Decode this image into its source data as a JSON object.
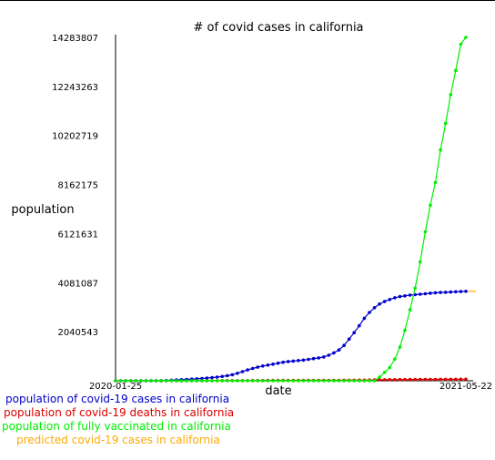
{
  "chart_data": {
    "type": "line",
    "title": "# of covid cases in california",
    "xlabel": "date",
    "ylabel": "population",
    "x_range": [
      "2020-01-25",
      "2021-05-22"
    ],
    "x_tick_labels": [
      "2020-01-25",
      "2021-05-22"
    ],
    "y_tick_labels": [
      "14283807",
      "12243263",
      "10202719",
      "8162175",
      "6121631",
      "4081087",
      "2040543"
    ],
    "ylim": [
      0,
      14283807
    ],
    "grid": false,
    "legend_position": "bottom-left",
    "dates": [
      "2020-01-25",
      "2020-02-01",
      "2020-02-08",
      "2020-02-15",
      "2020-02-22",
      "2020-02-29",
      "2020-03-07",
      "2020-03-14",
      "2020-03-21",
      "2020-03-28",
      "2020-04-04",
      "2020-04-11",
      "2020-04-18",
      "2020-04-25",
      "2020-05-02",
      "2020-05-09",
      "2020-05-16",
      "2020-05-23",
      "2020-05-30",
      "2020-06-06",
      "2020-06-13",
      "2020-06-20",
      "2020-06-27",
      "2020-07-04",
      "2020-07-11",
      "2020-07-18",
      "2020-07-25",
      "2020-08-01",
      "2020-08-08",
      "2020-08-15",
      "2020-08-22",
      "2020-08-29",
      "2020-09-05",
      "2020-09-12",
      "2020-09-19",
      "2020-09-26",
      "2020-10-03",
      "2020-10-10",
      "2020-10-17",
      "2020-10-24",
      "2020-10-31",
      "2020-11-07",
      "2020-11-14",
      "2020-11-21",
      "2020-11-28",
      "2020-12-05",
      "2020-12-12",
      "2020-12-19",
      "2020-12-26",
      "2021-01-02",
      "2021-01-09",
      "2021-01-16",
      "2021-01-23",
      "2021-01-30",
      "2021-02-06",
      "2021-02-13",
      "2021-02-20",
      "2021-02-27",
      "2021-03-06",
      "2021-03-13",
      "2021-03-20",
      "2021-03-27",
      "2021-04-03",
      "2021-04-10",
      "2021-04-17",
      "2021-04-24",
      "2021-05-01",
      "2021-05-08",
      "2021-05-15",
      "2021-05-22"
    ],
    "series": [
      {
        "name": "population of covid-19 cases in california",
        "color": "#0000cc",
        "marker": "dot",
        "values": [
          0,
          0,
          0,
          0,
          0,
          0,
          100,
          500,
          1500,
          5000,
          12000,
          22000,
          33000,
          44000,
          56000,
          68000,
          81000,
          96000,
          113000,
          131000,
          150000,
          178000,
          211000,
          250000,
          310000,
          380000,
          450000,
          510000,
          565000,
          612000,
          650000,
          690000,
          730000,
          770000,
          800000,
          820000,
          840000,
          860000,
          890000,
          920000,
          950000,
          990000,
          1060000,
          1160000,
          1280000,
          1470000,
          1730000,
          2000000,
          2290000,
          2600000,
          2840000,
          3040000,
          3190000,
          3300000,
          3380000,
          3450000,
          3500000,
          3530000,
          3560000,
          3580000,
          3600000,
          3620000,
          3640000,
          3660000,
          3670000,
          3680000,
          3690000,
          3700000,
          3710000,
          3720000
        ]
      },
      {
        "name": "population of covid-19 deaths in california",
        "color": "#dd0000",
        "marker": "dot",
        "values": [
          0,
          0,
          0,
          0,
          0,
          0,
          0,
          10,
          40,
          140,
          400,
          800,
          1200,
          1600,
          2000,
          2500,
          3000,
          3500,
          4000,
          4600,
          5100,
          5700,
          6200,
          6700,
          7400,
          8300,
          9300,
          10500,
          11500,
          12400,
          13300,
          14100,
          14800,
          15400,
          16000,
          16600,
          17100,
          17500,
          17900,
          18200,
          18500,
          18800,
          19200,
          19700,
          20300,
          21000,
          22000,
          23500,
          25000,
          27000,
          30000,
          33000,
          37000,
          41000,
          44000,
          47000,
          49000,
          51000,
          53000,
          54500,
          55500,
          56500,
          57500,
          58500,
          59500,
          60500,
          61500,
          62500,
          63000,
          63500
        ]
      },
      {
        "name": "population of fully vaccinated in california",
        "color": "#00ee00",
        "marker": "dot",
        "values": [
          0,
          0,
          0,
          0,
          0,
          0,
          0,
          0,
          0,
          0,
          0,
          0,
          0,
          0,
          0,
          0,
          0,
          0,
          0,
          0,
          0,
          0,
          0,
          0,
          0,
          0,
          0,
          0,
          0,
          0,
          0,
          0,
          0,
          0,
          0,
          0,
          0,
          0,
          0,
          0,
          0,
          0,
          0,
          0,
          0,
          0,
          0,
          0,
          0,
          0,
          0,
          0,
          150000,
          350000,
          550000,
          900000,
          1400000,
          2100000,
          2950000,
          3850000,
          4950000,
          6200000,
          7300000,
          8250000,
          9600000,
          10700000,
          11900000,
          12900000,
          14000000,
          14283807
        ]
      },
      {
        "name": "predicted covid-19 cases in california",
        "color": "#ffaa00",
        "marker": "none",
        "values": [
          null,
          null,
          null,
          null,
          null,
          null,
          null,
          null,
          null,
          null,
          null,
          null,
          null,
          null,
          null,
          null,
          null,
          null,
          null,
          null,
          null,
          null,
          null,
          null,
          null,
          null,
          null,
          null,
          null,
          null,
          null,
          null,
          null,
          null,
          null,
          null,
          null,
          null,
          null,
          null,
          null,
          null,
          null,
          null,
          null,
          null,
          null,
          null,
          null,
          null,
          null,
          null,
          null,
          null,
          null,
          null,
          null,
          null,
          null,
          null,
          null,
          null,
          null,
          null,
          null,
          null,
          null,
          null,
          null,
          3720000
        ],
        "extends_to": "2021-06-05"
      }
    ]
  }
}
